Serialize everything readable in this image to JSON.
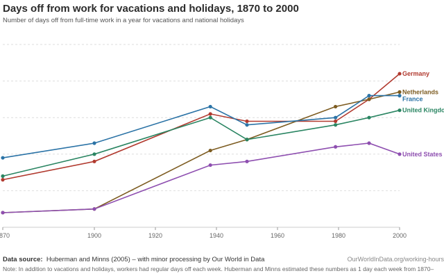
{
  "header": {
    "title": "Days off from work for vacations and holidays, 1870 to 2000",
    "subtitle": "Number of days off from full-time work in a year for vacations and national holidays"
  },
  "footer": {
    "source_label": "Data source:",
    "source_text": "Huberman and Minns (2005) – with minor processing by Our World in Data",
    "url": "OurWorldInData.org/working-hours",
    "note": "Note: In addition to vacations and holidays, workers had regular days off each week. Huberman and Minns estimated these numbers as 1 day each week from 1870–"
  },
  "chart_data": {
    "type": "line",
    "title": "Days off from work for vacations and holidays, 1870 to 2000",
    "xlabel": "",
    "ylabel": "",
    "xlim": [
      1870,
      2000
    ],
    "ylim": [
      0,
      50
    ],
    "x_ticks": [
      1870,
      1900,
      1920,
      1940,
      1960,
      1980,
      2000
    ],
    "x_tick_labels": [
      "1870",
      "1900",
      "1920",
      "1940",
      "1960",
      "1980",
      "2000"
    ],
    "grid": true,
    "legend": "line-end labels",
    "series": [
      {
        "name": "Germany",
        "color": "#b13a2f",
        "points": [
          [
            1870,
            13
          ],
          [
            1900,
            18
          ],
          [
            1938,
            31
          ],
          [
            1950,
            29
          ],
          [
            1979,
            29
          ],
          [
            1990,
            35
          ],
          [
            2000,
            42
          ]
        ]
      },
      {
        "name": "Netherlands",
        "color": "#7d5c21",
        "points": [
          [
            1870,
            4
          ],
          [
            1900,
            5
          ],
          [
            1938,
            21
          ],
          [
            1950,
            24
          ],
          [
            1979,
            33
          ],
          [
            1990,
            35
          ],
          [
            2000,
            37
          ]
        ]
      },
      {
        "name": "France",
        "color": "#2b73a6",
        "points": [
          [
            1870,
            19
          ],
          [
            1900,
            23
          ],
          [
            1938,
            33
          ],
          [
            1950,
            28
          ],
          [
            1979,
            30
          ],
          [
            1990,
            36
          ],
          [
            2000,
            36
          ]
        ]
      },
      {
        "name": "United Kingdom",
        "color": "#2a8562",
        "points": [
          [
            1870,
            14
          ],
          [
            1900,
            20
          ],
          [
            1938,
            30
          ],
          [
            1950,
            24
          ],
          [
            1979,
            28
          ],
          [
            1990,
            30
          ],
          [
            2000,
            32
          ]
        ]
      },
      {
        "name": "United States",
        "color": "#8e4fb0",
        "points": [
          [
            1870,
            4
          ],
          [
            1900,
            5
          ],
          [
            1938,
            17
          ],
          [
            1950,
            18
          ],
          [
            1979,
            22
          ],
          [
            1990,
            23
          ],
          [
            2000,
            20
          ]
        ]
      }
    ]
  }
}
